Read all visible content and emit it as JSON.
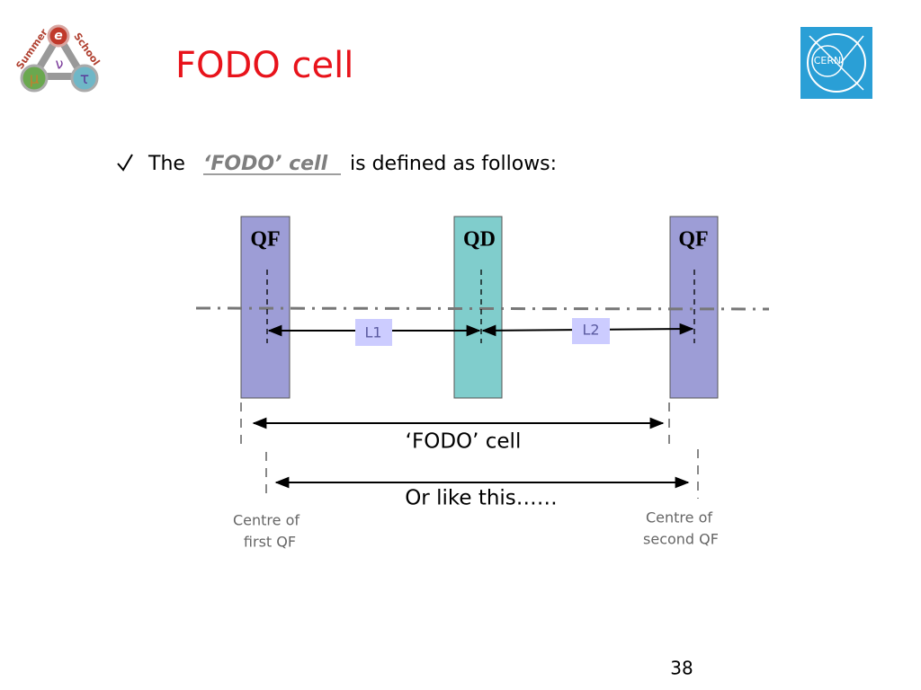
{
  "header": {
    "title": "FODO cell",
    "logo": {
      "top": "Summer",
      "right": "School",
      "e": "e",
      "nu": "ν",
      "mu": "μ",
      "tau": "τ"
    },
    "cern": "CERN"
  },
  "bullet": {
    "lead": "The",
    "term": "‘FODO’ cell",
    "rest": "is defined as follows:"
  },
  "diagram": {
    "magnets": [
      "QF",
      "QD",
      "QF"
    ],
    "lengths": [
      "L1",
      "L2"
    ],
    "cell": "‘FODO’ cell",
    "alt": "Or like this……",
    "centre_first": [
      "Centre of",
      "first QF"
    ],
    "centre_second": [
      "Centre of",
      "second QF"
    ]
  },
  "page_number": "38"
}
